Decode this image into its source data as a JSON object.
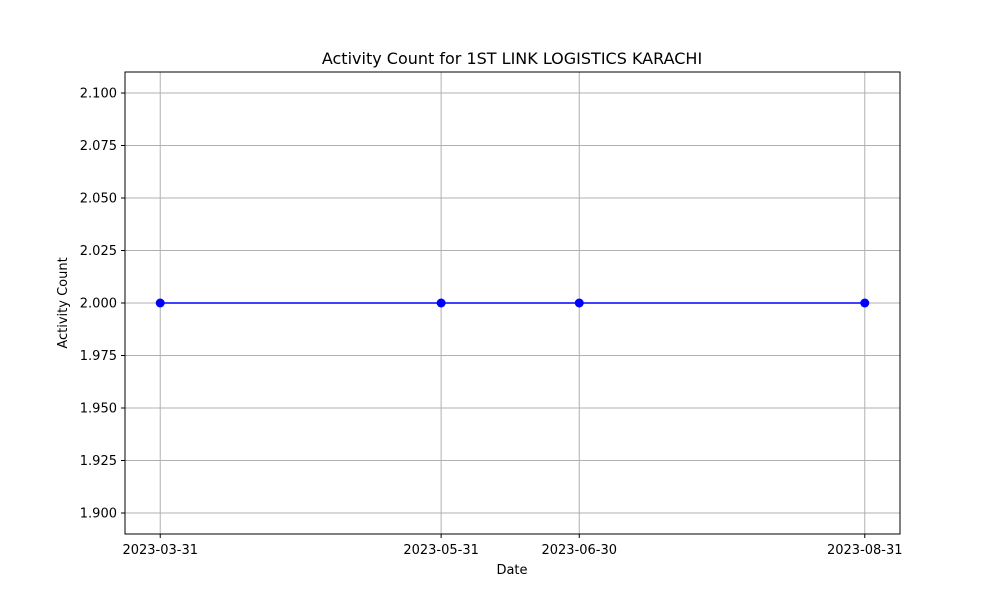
{
  "chart_data": {
    "type": "line",
    "title": "Activity Count for 1ST LINK LOGISTICS KARACHI",
    "xlabel": "Date",
    "ylabel": "Activity Count",
    "x": [
      "2023-03-31",
      "2023-05-31",
      "2023-06-30",
      "2023-08-31"
    ],
    "series": [
      {
        "values": [
          2.0,
          2.0,
          2.0,
          2.0
        ],
        "color": "#0000ff",
        "marker": "circle"
      }
    ],
    "ylim": [
      1.89,
      2.11
    ],
    "yticks": [
      "1.900",
      "1.925",
      "1.950",
      "1.975",
      "2.000",
      "2.025",
      "2.050",
      "2.075",
      "2.100"
    ],
    "grid": true,
    "legend": "none"
  }
}
